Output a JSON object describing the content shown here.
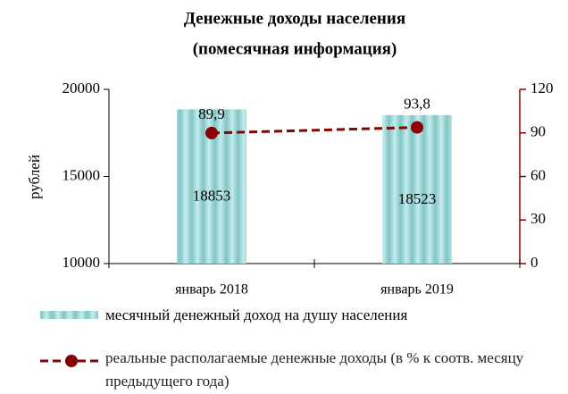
{
  "chart_data": {
    "type": "bar",
    "title": "Денежные доходы населения",
    "subtitle": "(помесячная информация)",
    "y_label": "рублей",
    "categories": [
      "январь 2018",
      "январь 2019"
    ],
    "series": [
      {
        "name": "месячный денежный доход на душу населения",
        "color": "#8fd0d0",
        "values": [
          18853,
          18523
        ]
      },
      {
        "name": "реальные располагаемые денежные доходы (в % к соотв. месяцу предыдущего года)",
        "type": "line",
        "axis": "y2",
        "color": "#8b0000",
        "values": [
          89.9,
          93.8
        ],
        "value_labels": [
          "89,9",
          "93,8"
        ]
      }
    ],
    "ylim": [
      10000,
      20000
    ],
    "yticks": [
      10000,
      15000,
      20000
    ],
    "y2lim": [
      0,
      120
    ],
    "y2ticks": [
      0,
      30,
      60,
      90,
      120
    ]
  }
}
